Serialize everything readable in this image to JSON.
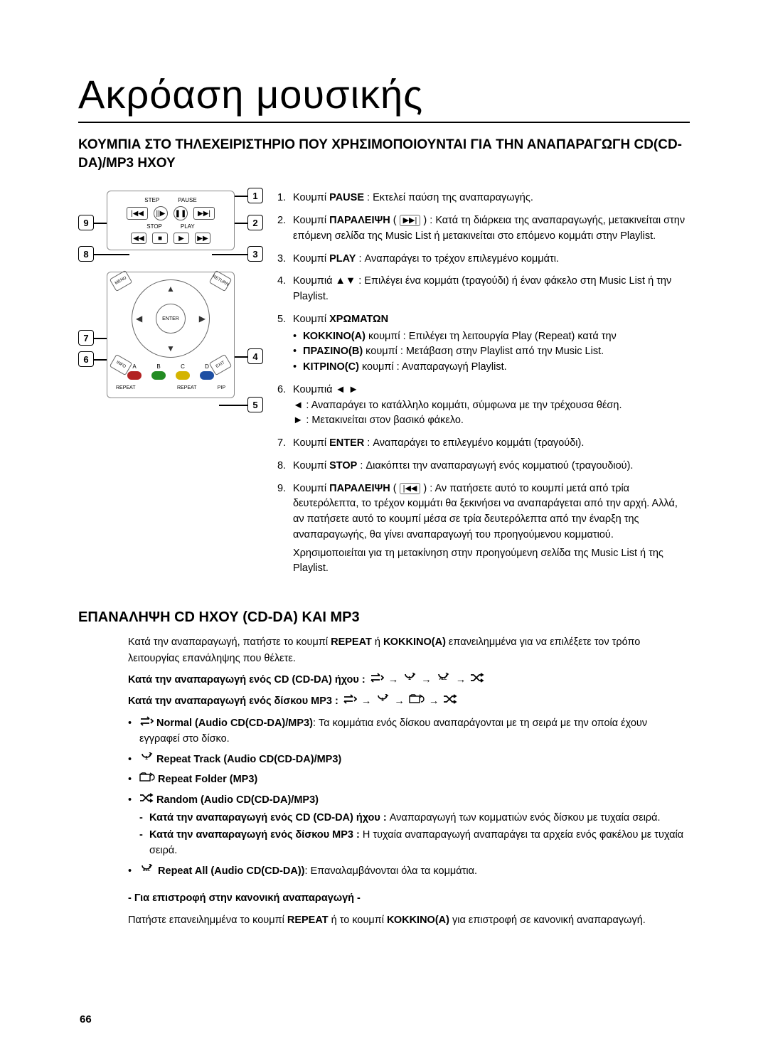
{
  "page": {
    "title": "Ακρόαση μουσικής",
    "subtitle": "ΚΟΥΜΠΙΑ ΣΤΟ ΤΗΛΕΧΕΙΡΙΣΤΗΡΙΟ ΠΟΥ ΧΡΗΣΙΜΟΠΟΙΟΥΝΤΑΙ ΓΙΑ ΤΗΝ ΑΝΑΠΑΡΑΓΩΓΗ CD(CD-DA)/MP3 ΗΧΟΥ",
    "page_number": "66"
  },
  "remote": {
    "labels": {
      "step": "STEP",
      "pause": "PAUSE",
      "stop": "STOP",
      "play": "PLAY",
      "enter": "ENTER",
      "menu": "MENU",
      "return": "RETURN",
      "info": "INFO",
      "exit": "EXIT"
    },
    "colors": {
      "a": "A",
      "b": "B",
      "c": "C",
      "d": "D"
    },
    "bottom": {
      "repeat": "REPEAT",
      "empty": "",
      "mode": "REPEAT",
      "pip": "PIP"
    },
    "color_hex": {
      "a": "#b22222",
      "b": "#228b22",
      "c": "#d4b400",
      "d": "#1e4fa3"
    }
  },
  "callouts": [
    "1",
    "2",
    "3",
    "4",
    "5",
    "6",
    "7",
    "8",
    "9"
  ],
  "buttons": {
    "items": [
      {
        "label": "PAUSE",
        "desc": " : Εκτελεί παύση της αναπαραγωγής."
      },
      {
        "label": "ΠΑΡΑΛΕΙΨΗ",
        "btn_glyph": "▶▶|",
        "desc": " : Κατά τη διάρκεια της αναπαραγωγής, μετακινείται στην επόμενη σελίδα της Music List ή μετακινείται στο επόμενο κομμάτι στην Playlist."
      },
      {
        "label": "PLAY",
        "desc": " : Αναπαράγει το τρέχον επιλεγμένο κομμάτι."
      },
      {
        "label_prefix": "Κουμπιά ",
        "label": "▲▼",
        "desc": " : Επιλέγει ένα κομμάτι (τραγούδι) ή έναν φάκελο στη Music List ή την Playlist."
      },
      {
        "label": "ΧΡΩΜΑΤΩΝ",
        "desc": "",
        "sub": [
          {
            "b": "ΚΟΚΚΙΝΟ(A)",
            "t": " κουμπί : Επιλέγει τη λειτουργία Play (Repeat) κατά την"
          },
          {
            "b": "ΠΡΑΣΙΝΟ(B)",
            "t": " κουμπί : Μετάβαση στην Playlist από την Music List."
          },
          {
            "b": "ΚΙΤΡΙΝΟ(C)",
            "t": " κουμπί : Αναπαραγωγή Playlist."
          }
        ]
      },
      {
        "label_prefix": "Κουμπιά ",
        "label": "◄ ►",
        "desc": "",
        "plain_sub": [
          "◄ : Αναπαράγει το κατάλληλο κομμάτι, σύμφωνα με την τρέχουσα θέση.",
          "► : Μετακινείται στον βασικό φάκελο."
        ]
      },
      {
        "label": "ENTER",
        "desc": " : Αναπαράγει το επιλεγμένο κομμάτι (τραγούδι)."
      },
      {
        "label": "STOP",
        "desc": " : Διακόπτει την αναπαραγωγή ενός κομματιού (τραγουδιού)."
      },
      {
        "label": "ΠΑΡΑΛΕΙΨΗ",
        "btn_glyph": "|◀◀",
        "desc": " : Αν πατήσετε αυτό το κουμπί μετά από τρία δευτερόλεπτα, το τρέχον κομμάτι θα ξεκινήσει να αναπαράγεται από την αρχή. Αλλά, αν πατήσετε αυτό το κουμπί μέσα σε τρία δευτερόλεπτα από την έναρξη της αναπαραγωγής, θα γίνει αναπαραγωγή του προηγούμενου κομματιού.",
        "note": "Χρησιμοποιείται για τη μετακίνηση στην προηγούμενη σελίδα της Music List ή της Playlist."
      }
    ]
  },
  "repeat": {
    "title": "ΕΠΑΝΑΛΗΨΗ CD ΗΧΟΥ (CD-DA) ΚΑΙ MP3",
    "intro_a": "Κατά την αναπαραγωγή, πατήστε το κουμπί ",
    "intro_b1": "REPEAT",
    "intro_mid": " ή ",
    "intro_b2": "ΚΟΚΚΙΝΟ(A)",
    "intro_c": " επανειλημμένα για να επιλέξετε τον τρόπο λειτουργίας επανάληψης που θέλετε.",
    "line_cd": "Κατά την αναπαραγωγή ενός CD (CD-DA) ήχου : ",
    "line_mp3": "Κατά την αναπαραγωγή ενός δίσκου MP3 : ",
    "seq_cd": [
      "normal",
      "track",
      "all",
      "random"
    ],
    "seq_mp3": [
      "normal",
      "track",
      "folder",
      "random"
    ],
    "modes": [
      {
        "icon": "normal",
        "b": "Normal (Audio CD(CD-DA)/MP3)",
        "t": ": Τα κομμάτια ενός δίσκου αναπαράγονται με τη σειρά με την οποία έχουν εγγραφεί στο δίσκο."
      },
      {
        "icon": "track",
        "b": "Repeat Track (Audio CD(CD-DA)/MP3)",
        "t": ""
      },
      {
        "icon": "folder",
        "b": "Repeat Folder (MP3)",
        "t": ""
      },
      {
        "icon": "random",
        "b": "Random (Audio CD(CD-DA)/MP3)",
        "t": "",
        "dash": [
          {
            "b": "Κατά την αναπαραγωγή ενός CD (CD-DA) ήχου : ",
            "t": "Αναπαραγωγή των κομματιών ενός δίσκου με τυχαία σειρά."
          },
          {
            "b": "Κατά την αναπαραγωγή ενός δίσκου MP3 : ",
            "t": "Η τυχαία αναπαραγωγή αναπαράγει τα αρχεία ενός φακέλου με τυχαία σειρά."
          }
        ]
      },
      {
        "icon": "all",
        "b": "Repeat All (Audio CD(CD-DA))",
        "t": ": Επαναλαμβάνονται όλα τα κομμάτια."
      }
    ],
    "return_title": "- Για επιστροφή στην κανονική αναπαραγωγή -",
    "return_a": "Πατήστε επανειλημμένα το κουμπί ",
    "return_b1": "REPEAT",
    "return_mid": " ή το κουμπί ",
    "return_b2": "ΚΟΚΚΙΝΟ(A)",
    "return_c": " για επιστροφή σε κανονική αναπαραγωγή."
  },
  "icons": {
    "normal": "<svg width='20' height='14' viewBox='0 0 20 14'><path d='M2 4 H14 M14 4 L11 1 M2 10 H14 M2 10 L5 13 M16 4 L19 7 L16 10' stroke='#000' stroke-width='1.8' fill='none'/></svg>",
    "track": "<svg width='20' height='14' viewBox='0 0 20 14'><path d='M4 2 A6 5 0 1 0 16 2' stroke='#000' stroke-width='1.6' fill='none'/><path d='M14 0 L17 2 L14 4' stroke='#000' stroke-width='1.6' fill='none'/><text x='10' y='10' font-size='7' text-anchor='middle' font-weight='bold'>1</text></svg>",
    "folder": "<svg width='22' height='14' viewBox='0 0 22 14'><rect x='1' y='3' width='14' height='9' stroke='#000' stroke-width='1.4' fill='none'/><path d='M1 3 L4 1 H8 L10 3' stroke='#000' stroke-width='1.4' fill='none'/><path d='M17 3 A4 4 0 1 1 17 11' stroke='#000' stroke-width='1.4' fill='none'/><path d='M15 1 L18 3 L15 5' stroke='#000' stroke-width='1.4' fill='none'/></svg>",
    "all": "<svg width='22' height='14' viewBox='0 0 22 14'><path d='M4 2 A6 5 0 1 0 16 2' stroke='#000' stroke-width='1.6' fill='none'/><path d='M14 0 L17 2 L14 4' stroke='#000' stroke-width='1.6' fill='none'/><text x='10' y='10' font-size='5.5' text-anchor='middle' font-weight='bold'>ALL</text></svg>",
    "random": "<svg width='20' height='14' viewBox='0 0 20 14'><path d='M1 3 H5 L13 11 H17 M1 11 H5 L13 3 H17' stroke='#000' stroke-width='1.7' fill='none'/><path d='M15 1 L18 3 L15 5 M15 9 L18 11 L15 13' stroke='#000' stroke-width='1.7' fill='none'/></svg>",
    "arrow": "→"
  }
}
